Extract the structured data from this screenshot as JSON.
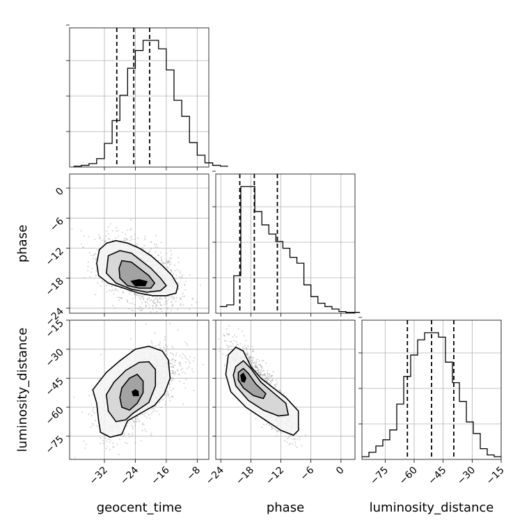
{
  "chart_data": {
    "type": "corner",
    "parameters": [
      "geocent_time",
      "phase",
      "luminosity_distance"
    ],
    "grid": true,
    "ranges": {
      "geocent_time": [
        -41,
        -5
      ],
      "phase": [
        -25,
        2.8
      ],
      "luminosity_distance": [
        -87,
        -15
      ]
    },
    "ticks": {
      "geocent_time": {
        "values": [
          -32,
          -24,
          -16,
          -8
        ],
        "labels": [
          "−32",
          "−24",
          "−16",
          "−8"
        ]
      },
      "phase": {
        "values": [
          -24,
          -18,
          -12,
          -6,
          0
        ],
        "labels": [
          "−24",
          "−18",
          "−12",
          "−6",
          "0"
        ]
      },
      "luminosity_distance": {
        "values": [
          -75,
          -60,
          -45,
          -30,
          -15
        ],
        "labels": [
          "−75",
          "−60",
          "−45",
          "−30",
          "−15"
        ]
      }
    },
    "marginals": {
      "geocent_time": {
        "bin_width": 2,
        "bin_start": -40,
        "counts": [
          1,
          2,
          4,
          10,
          28,
          55,
          85,
          117,
          138,
          150,
          150,
          140,
          115,
          79,
          60,
          29,
          14,
          5,
          2,
          1
        ],
        "quantiles": [
          -28.8,
          -24.4,
          -20.3
        ]
      },
      "phase": {
        "bin_width": 1.4,
        "bin_start": -24.2,
        "counts": [
          8,
          10,
          45,
          152,
          152,
          122,
          106,
          95,
          86,
          78,
          67,
          60,
          34,
          20,
          12,
          8,
          5,
          2,
          1,
          1
        ],
        "quantiles": [
          -20.2,
          -17.3,
          -12.7
        ]
      },
      "luminosity_distance": {
        "bin_width": 3.6,
        "bin_start": -87,
        "counts": [
          3,
          8,
          15,
          22,
          33,
          62,
          93,
          117,
          134,
          142,
          142,
          137,
          109,
          86,
          65,
          42,
          29,
          12,
          5,
          3
        ],
        "quantiles": [
          -63.5,
          -51.0,
          -39.5
        ]
      }
    },
    "joint": [
      {
        "x": "geocent_time",
        "y": "phase",
        "mean": [
          -23,
          -17
        ],
        "sd": [
          5,
          3.4
        ],
        "corr": -0.45,
        "contours": [
          [
            [
              -33.3,
              -12.3
            ],
            [
              -31.4,
              -11.0
            ],
            [
              -29.0,
              -10.5
            ],
            [
              -26.0,
              -11.0
            ],
            [
              -23.0,
              -12.0
            ],
            [
              -20.0,
              -13.5
            ],
            [
              -17.0,
              -15.5
            ],
            [
              -14.5,
              -17.5
            ],
            [
              -13.0,
              -19.5
            ],
            [
              -13.5,
              -21.0
            ],
            [
              -16.0,
              -21.5
            ],
            [
              -19.5,
              -21.5
            ],
            [
              -23.0,
              -21.0
            ],
            [
              -27.0,
              -20.0
            ],
            [
              -31.0,
              -19.0
            ],
            [
              -33.5,
              -17.5
            ],
            [
              -34.0,
              -15.0
            ],
            [
              -33.3,
              -12.3
            ]
          ],
          [
            [
              -31.0,
              -13.5
            ],
            [
              -28.0,
              -12.5
            ],
            [
              -25.0,
              -13.0
            ],
            [
              -22.5,
              -14.5
            ],
            [
              -20.0,
              -16.0
            ],
            [
              -17.5,
              -18.0
            ],
            [
              -16.0,
              -19.5
            ],
            [
              -17.5,
              -20.5
            ],
            [
              -21.0,
              -20.8
            ],
            [
              -25.0,
              -20.2
            ],
            [
              -29.0,
              -19.0
            ],
            [
              -31.5,
              -17.0
            ],
            [
              -31.0,
              -13.5
            ]
          ],
          [
            [
              -27.5,
              -14.5
            ],
            [
              -25.0,
              -14.8
            ],
            [
              -23.0,
              -16.0
            ],
            [
              -20.5,
              -17.5
            ],
            [
              -19.0,
              -19.0
            ],
            [
              -20.0,
              -20.0
            ],
            [
              -23.0,
              -20.0
            ],
            [
              -26.0,
              -19.5
            ],
            [
              -28.0,
              -18.0
            ],
            [
              -28.2,
              -16.0
            ],
            [
              -27.5,
              -14.5
            ]
          ],
          [
            [
              -25.0,
              -18.6
            ],
            [
              -23.0,
              -18.3
            ],
            [
              -21.0,
              -18.7
            ],
            [
              -21.5,
              -19.5
            ],
            [
              -24.0,
              -19.5
            ],
            [
              -25.0,
              -18.6
            ]
          ]
        ]
      },
      {
        "x": "geocent_time",
        "y": "luminosity_distance",
        "mean": [
          -23,
          -51
        ],
        "sd": [
          5,
          11
        ],
        "corr": 0.6,
        "contours": [
          [
            [
              -35.0,
              -51.0
            ],
            [
              -34.0,
              -58.0
            ],
            [
              -33.5,
              -67.0
            ],
            [
              -33.0,
              -73.0
            ],
            [
              -30.5,
              -75.5
            ],
            [
              -27.5,
              -74.0
            ],
            [
              -26.0,
              -67.0
            ],
            [
              -22.5,
              -63.0
            ],
            [
              -19.0,
              -59.0
            ],
            [
              -16.5,
              -53.0
            ],
            [
              -15.0,
              -45.0
            ],
            [
              -15.5,
              -35.5
            ],
            [
              -17.0,
              -31.0
            ],
            [
              -20.5,
              -28.5
            ],
            [
              -24.0,
              -30.0
            ],
            [
              -28.0,
              -36.0
            ],
            [
              -31.5,
              -42.0
            ],
            [
              -35.0,
              -51.0
            ]
          ],
          [
            [
              -31.5,
              -53.5
            ],
            [
              -31.0,
              -62.0
            ],
            [
              -29.0,
              -67.5
            ],
            [
              -26.5,
              -66.5
            ],
            [
              -24.5,
              -63.0
            ],
            [
              -20.5,
              -57.5
            ],
            [
              -18.8,
              -49.0
            ],
            [
              -18.8,
              -40.5
            ],
            [
              -20.5,
              -36.5
            ],
            [
              -23.0,
              -36.8
            ],
            [
              -26.5,
              -41.0
            ],
            [
              -29.5,
              -47.0
            ],
            [
              -31.5,
              -53.5
            ]
          ],
          [
            [
              -28.0,
              -55.0
            ],
            [
              -27.5,
              -60.0
            ],
            [
              -25.5,
              -61.5
            ],
            [
              -23.5,
              -58.0
            ],
            [
              -22.0,
              -52.5
            ],
            [
              -22.0,
              -46.5
            ],
            [
              -23.5,
              -43.0
            ],
            [
              -25.5,
              -45.0
            ],
            [
              -27.5,
              -50.0
            ],
            [
              -28.0,
              -55.0
            ]
          ],
          [
            [
              -24.8,
              -52.0
            ],
            [
              -24.5,
              -54.0
            ],
            [
              -23.2,
              -54.0
            ],
            [
              -23.3,
              -51.8
            ],
            [
              -24.0,
              -51.0
            ],
            [
              -24.8,
              -52.0
            ]
          ]
        ]
      },
      {
        "x": "phase",
        "y": "luminosity_distance",
        "mean": [
          -16,
          -50
        ],
        "sd": [
          3,
          11
        ],
        "corr": -0.85,
        "contours": [
          [
            [
              -22.5,
              -33.0
            ],
            [
              -21.0,
              -29.0
            ],
            [
              -19.5,
              -31.0
            ],
            [
              -18.0,
              -39.0
            ],
            [
              -16.0,
              -45.0
            ],
            [
              -13.5,
              -50.0
            ],
            [
              -11.0,
              -55.0
            ],
            [
              -8.5,
              -62.0
            ],
            [
              -8.5,
              -72.0
            ],
            [
              -9.5,
              -74.5
            ],
            [
              -12.0,
              -72.0
            ],
            [
              -15.5,
              -66.0
            ],
            [
              -19.0,
              -60.0
            ],
            [
              -22.0,
              -52.0
            ],
            [
              -23.0,
              -43.0
            ],
            [
              -22.5,
              -33.0
            ]
          ],
          [
            [
              -21.0,
              -39.0
            ],
            [
              -19.5,
              -36.0
            ],
            [
              -18.0,
              -40.0
            ],
            [
              -16.0,
              -47.0
            ],
            [
              -13.5,
              -52.5
            ],
            [
              -11.0,
              -58.0
            ],
            [
              -10.5,
              -64.0
            ],
            [
              -12.5,
              -64.5
            ],
            [
              -15.5,
              -61.5
            ],
            [
              -18.5,
              -56.5
            ],
            [
              -21.0,
              -49.0
            ],
            [
              -21.5,
              -43.5
            ],
            [
              -21.0,
              -39.0
            ]
          ],
          [
            [
              -20.5,
              -42.0
            ],
            [
              -19.5,
              -40.0
            ],
            [
              -18.5,
              -42.5
            ],
            [
              -17.0,
              -48.0
            ],
            [
              -15.0,
              -53.0
            ],
            [
              -15.5,
              -55.5
            ],
            [
              -17.5,
              -54.0
            ],
            [
              -19.5,
              -50.0
            ],
            [
              -20.5,
              -46.0
            ],
            [
              -20.5,
              -42.0
            ]
          ],
          [
            [
              -20.0,
              -43.5
            ],
            [
              -19.5,
              -42.5
            ],
            [
              -19.0,
              -45.0
            ],
            [
              -19.3,
              -47.0
            ],
            [
              -19.8,
              -46.5
            ],
            [
              -20.0,
              -43.5
            ]
          ]
        ]
      }
    ]
  }
}
